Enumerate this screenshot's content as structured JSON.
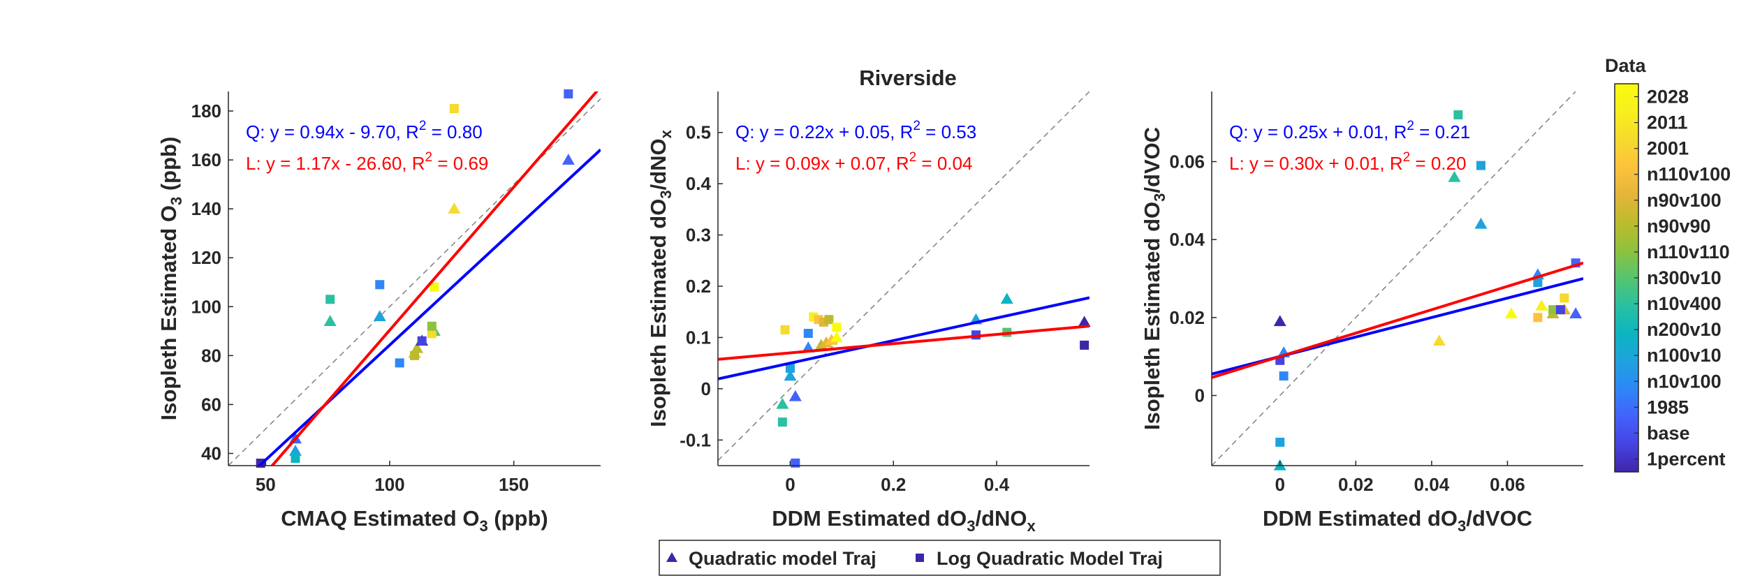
{
  "figure": {
    "title": "Riverside",
    "colorbar": {
      "title": "Data",
      "labels": [
        "1percent",
        "base",
        "1985",
        "n10v100",
        "n100v10",
        "n200v10",
        "n10v400",
        "n300v10",
        "n110v110",
        "n90v90",
        "n90v100",
        "n110v100",
        "2001",
        "2011",
        "2028"
      ]
    },
    "legend": {
      "entries": [
        {
          "label": "Quadratic model Traj",
          "marker": "triangle"
        },
        {
          "label": "Log Quadratic Model Traj",
          "marker": "square"
        }
      ]
    }
  },
  "chart_data": [
    {
      "type": "scatter",
      "panel": "left",
      "xlabel": {
        "pre": "CMAQ Estimated O",
        "sub": "3",
        "post": " (ppb)"
      },
      "ylabel": {
        "pre": "Isopleth Estimated O",
        "sub": "3",
        "post": " (ppb)"
      },
      "xlim": [
        35,
        185
      ],
      "ylim": [
        35,
        188
      ],
      "xticks": [
        50,
        100,
        150
      ],
      "yticks": [
        40,
        60,
        80,
        100,
        120,
        140,
        160,
        180
      ],
      "equations": [
        {
          "pre": "Q: y = 0.94x - 9.70, R",
          "sup": "2",
          "post": " = 0.80",
          "color": "#0000ff"
        },
        {
          "pre": "L: y = 1.17x - 26.60, R",
          "sup": "2",
          "post": " = 0.69",
          "color": "#ff0000"
        }
      ],
      "fits": [
        {
          "name": "Q",
          "slope": 0.94,
          "intercept": -9.7,
          "color": "#0000ff"
        },
        {
          "name": "L",
          "slope": 1.17,
          "intercept": -26.6,
          "color": "#ff0000"
        }
      ],
      "series": [
        {
          "name": "Quadratic model Traj",
          "marker": "triangle",
          "points": [
            {
              "x": 62,
              "y": 46,
              "c": 2
            },
            {
              "x": 62,
              "y": 41,
              "c": 4
            },
            {
              "x": 76,
              "y": 94,
              "c": 6
            },
            {
              "x": 96,
              "y": 96,
              "c": 4
            },
            {
              "x": 110,
              "y": 81,
              "c": 10
            },
            {
              "x": 111,
              "y": 83,
              "c": 9
            },
            {
              "x": 113,
              "y": 86,
              "c": 0
            },
            {
              "x": 118,
              "y": 90,
              "c": 7
            },
            {
              "x": 126,
              "y": 140,
              "c": 12
            },
            {
              "x": 172,
              "y": 160,
              "c": 2
            }
          ]
        },
        {
          "name": "Log Quadratic Model Traj",
          "marker": "square",
          "points": [
            {
              "x": 48,
              "y": 36,
              "c": 0
            },
            {
              "x": 62,
              "y": 38,
              "c": 5
            },
            {
              "x": 76,
              "y": 103,
              "c": 6
            },
            {
              "x": 96,
              "y": 109,
              "c": 3
            },
            {
              "x": 104,
              "y": 77,
              "c": 3
            },
            {
              "x": 110,
              "y": 80,
              "c": 9
            },
            {
              "x": 113,
              "y": 86,
              "c": 1
            },
            {
              "x": 117,
              "y": 89,
              "c": 12
            },
            {
              "x": 117,
              "y": 92,
              "c": 8
            },
            {
              "x": 118,
              "y": 108,
              "c": 14
            },
            {
              "x": 126,
              "y": 181,
              "c": 12
            },
            {
              "x": 172,
              "y": 187,
              "c": 2
            }
          ]
        }
      ]
    },
    {
      "type": "scatter",
      "panel": "middle",
      "xlabel": {
        "pre": "DDM Estimated dO",
        "sub": "3",
        "mid": "/dNO",
        "sub2": "x",
        "post": ""
      },
      "ylabel": {
        "pre": "Isopleth Estimated dO",
        "sub": "3",
        "mid": "/dNO",
        "sub2": "x",
        "post": ""
      },
      "xlim": [
        -0.14,
        0.58
      ],
      "ylim": [
        -0.15,
        0.58
      ],
      "xticks": [
        0,
        0.2,
        0.4
      ],
      "yticks": [
        -0.1,
        0,
        0.1,
        0.2,
        0.3,
        0.4,
        0.5
      ],
      "equations": [
        {
          "pre": "Q: y = 0.22x + 0.05, R",
          "sup": "2",
          "post": " = 0.53",
          "color": "#0000ff"
        },
        {
          "pre": "L: y = 0.09x + 0.07, R",
          "sup": "2",
          "post": " = 0.04",
          "color": "#ff0000"
        }
      ],
      "fits": [
        {
          "name": "Q",
          "slope": 0.22,
          "intercept": 0.05,
          "color": "#0000ff"
        },
        {
          "name": "L",
          "slope": 0.09,
          "intercept": 0.07,
          "color": "#ff0000"
        }
      ],
      "series": [
        {
          "name": "Quadratic model Traj",
          "marker": "triangle",
          "points": [
            {
              "x": -0.015,
              "y": -0.03,
              "c": 6
            },
            {
              "x": 0.0,
              "y": 0.025,
              "c": 4
            },
            {
              "x": 0.01,
              "y": -0.015,
              "c": 2
            },
            {
              "x": 0.035,
              "y": 0.08,
              "c": 3
            },
            {
              "x": 0.06,
              "y": 0.085,
              "c": 9
            },
            {
              "x": 0.07,
              "y": 0.09,
              "c": 10
            },
            {
              "x": 0.08,
              "y": 0.095,
              "c": 11
            },
            {
              "x": 0.09,
              "y": 0.1,
              "c": 14
            },
            {
              "x": 0.36,
              "y": 0.135,
              "c": 4
            },
            {
              "x": 0.42,
              "y": 0.175,
              "c": 5
            },
            {
              "x": 0.57,
              "y": 0.13,
              "c": 0
            }
          ]
        },
        {
          "name": "Log Quadratic Model Traj",
          "marker": "square",
          "points": [
            {
              "x": -0.015,
              "y": -0.065,
              "c": 6
            },
            {
              "x": -0.01,
              "y": 0.115,
              "c": 12
            },
            {
              "x": 0.0,
              "y": 0.04,
              "c": 4
            },
            {
              "x": 0.01,
              "y": -0.145,
              "c": 2
            },
            {
              "x": 0.035,
              "y": 0.108,
              "c": 3
            },
            {
              "x": 0.045,
              "y": 0.14,
              "c": 13
            },
            {
              "x": 0.055,
              "y": 0.135,
              "c": 11
            },
            {
              "x": 0.065,
              "y": 0.13,
              "c": 10
            },
            {
              "x": 0.075,
              "y": 0.135,
              "c": 9
            },
            {
              "x": 0.09,
              "y": 0.12,
              "c": 14
            },
            {
              "x": 0.36,
              "y": 0.105,
              "c": 1
            },
            {
              "x": 0.42,
              "y": 0.11,
              "c": 7
            },
            {
              "x": 0.57,
              "y": 0.085,
              "c": 0
            }
          ]
        }
      ]
    },
    {
      "type": "scatter",
      "panel": "right",
      "xlabel": {
        "pre": "DDM Estimated dO",
        "sub": "3",
        "mid": "/dVOC",
        "sub2": "",
        "post": ""
      },
      "ylabel": {
        "pre": "Isopleth Estimated dO",
        "sub": "3",
        "mid": "/dVOC",
        "sub2": "",
        "post": ""
      },
      "xlim": [
        -0.018,
        0.08
      ],
      "ylim": [
        -0.018,
        0.078
      ],
      "xticks": [
        0,
        0.02,
        0.04,
        0.06
      ],
      "yticks": [
        0,
        0.02,
        0.04,
        0.06
      ],
      "equations": [
        {
          "pre": "Q: y = 0.25x + 0.01, R",
          "sup": "2",
          "post": " = 0.21",
          "color": "#0000ff"
        },
        {
          "pre": "L: y = 0.30x + 0.01, R",
          "sup": "2",
          "post": " = 0.20",
          "color": "#ff0000"
        }
      ],
      "fits": [
        {
          "name": "Q",
          "slope": 0.25,
          "intercept": 0.01,
          "color": "#0000ff"
        },
        {
          "name": "L",
          "slope": 0.3,
          "intercept": 0.01,
          "color": "#ff0000"
        }
      ],
      "series": [
        {
          "name": "Quadratic model Traj",
          "marker": "triangle",
          "points": [
            {
              "x": 0.0,
              "y": 0.019,
              "c": 0
            },
            {
              "x": 0.0,
              "y": -0.018,
              "c": 5
            },
            {
              "x": 0.001,
              "y": 0.011,
              "c": 3
            },
            {
              "x": 0.042,
              "y": 0.014,
              "c": 12
            },
            {
              "x": 0.046,
              "y": 0.056,
              "c": 6
            },
            {
              "x": 0.053,
              "y": 0.044,
              "c": 4
            },
            {
              "x": 0.061,
              "y": 0.021,
              "c": 14
            },
            {
              "x": 0.068,
              "y": 0.031,
              "c": 3
            },
            {
              "x": 0.069,
              "y": 0.023,
              "c": 13
            },
            {
              "x": 0.072,
              "y": 0.021,
              "c": 9
            },
            {
              "x": 0.075,
              "y": 0.022,
              "c": 10
            },
            {
              "x": 0.078,
              "y": 0.021,
              "c": 2
            }
          ]
        },
        {
          "name": "Log Quadratic Model Traj",
          "marker": "square",
          "points": [
            {
              "x": 0.0,
              "y": 0.009,
              "c": 1
            },
            {
              "x": 0.0,
              "y": -0.012,
              "c": 4
            },
            {
              "x": 0.001,
              "y": 0.005,
              "c": 3
            },
            {
              "x": 0.047,
              "y": 0.072,
              "c": 6
            },
            {
              "x": 0.053,
              "y": 0.059,
              "c": 4
            },
            {
              "x": 0.068,
              "y": 0.029,
              "c": 4
            },
            {
              "x": 0.068,
              "y": 0.02,
              "c": 11
            },
            {
              "x": 0.072,
              "y": 0.022,
              "c": 8
            },
            {
              "x": 0.074,
              "y": 0.022,
              "c": 1
            },
            {
              "x": 0.075,
              "y": 0.025,
              "c": 12
            },
            {
              "x": 0.078,
              "y": 0.034,
              "c": 2
            }
          ]
        }
      ]
    }
  ]
}
